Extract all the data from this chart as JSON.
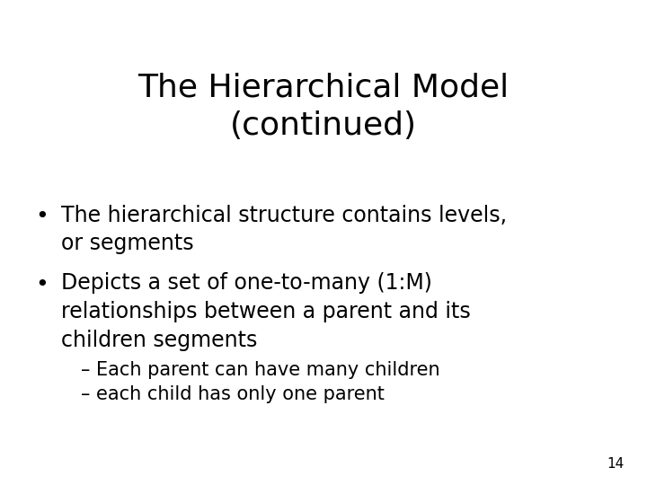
{
  "title_line1": "The Hierarchical Model",
  "title_line2": "(continued)",
  "title_fontsize": 26,
  "title_color": "#000000",
  "background_color": "#ffffff",
  "bullet1_line1": "The hierarchical structure contains levels,",
  "bullet1_line2": "or segments",
  "bullet2_line1": "Depicts a set of one-to-many (1:M)",
  "bullet2_line2": "relationships between a parent and its",
  "bullet2_line3": "children segments",
  "sub1": "– Each parent can have many children",
  "sub2": "– each child has only one parent",
  "bullet_fontsize": 17,
  "sub_fontsize": 15,
  "page_number": "14",
  "page_fontsize": 11
}
